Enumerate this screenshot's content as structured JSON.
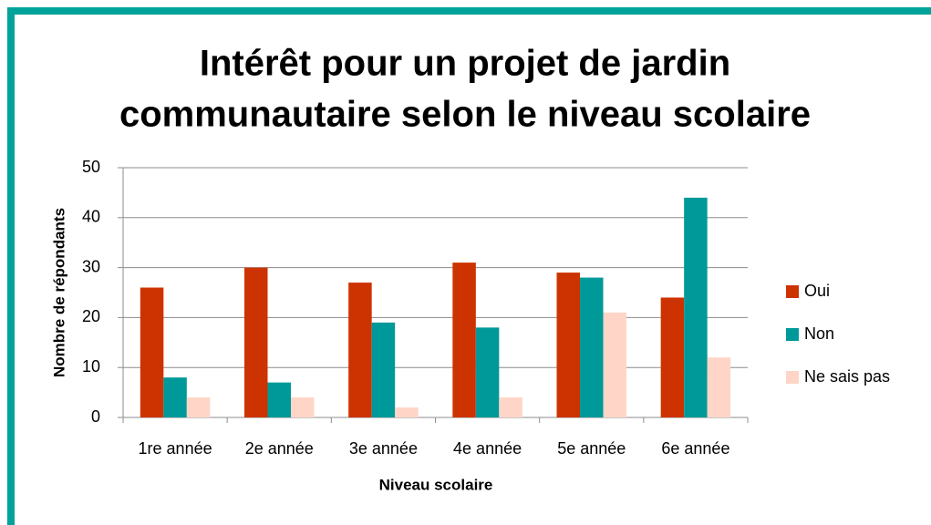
{
  "chart_data": {
    "type": "bar",
    "title": [
      "Intérêt pour un projet de jardin",
      "communautaire selon le niveau scolaire"
    ],
    "x_label": "Niveau scolaire",
    "y_label": "Nombre de répondants",
    "categories": [
      "1re année",
      "2e année",
      "3e année",
      "4e année",
      "5e année",
      "6e année"
    ],
    "series": [
      {
        "name": "Oui",
        "color": "#cc3300",
        "values": [
          26,
          30,
          27,
          31,
          29,
          24
        ]
      },
      {
        "name": "Non",
        "color": "#009999",
        "values": [
          8,
          7,
          19,
          18,
          28,
          44
        ]
      },
      {
        "name": "Ne sais pas",
        "color": "#ffd5c8",
        "values": [
          4,
          4,
          2,
          4,
          21,
          12
        ]
      }
    ],
    "ylim": [
      0,
      50
    ],
    "yticks": [
      0,
      10,
      20,
      30,
      40,
      50
    ],
    "grid": true,
    "legend": "right"
  }
}
